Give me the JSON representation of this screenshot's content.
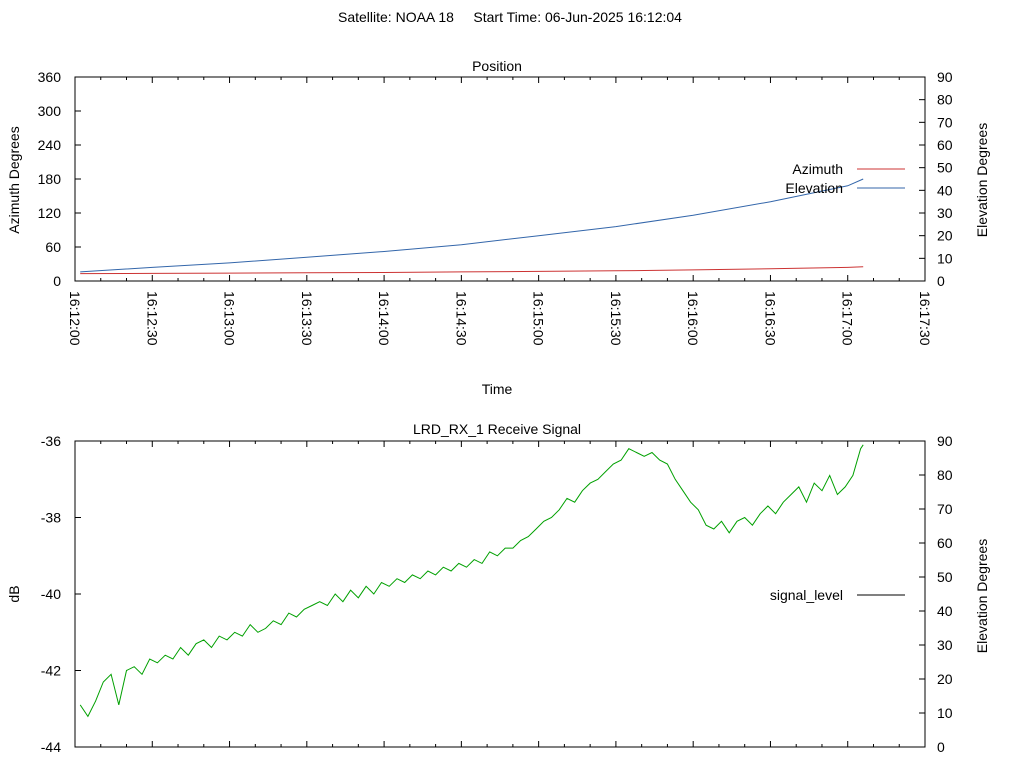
{
  "figure": {
    "title": "Satellite: NOAA 18     Start Time: 06-Jun-2025 16:12:04"
  },
  "chart_data": [
    {
      "type": "line",
      "title": "Position",
      "xlabel": "Time",
      "ylabel": "Azimuth Degrees",
      "y2label": "Elevation Degrees",
      "x_tick_labels": [
        "16:12:00",
        "16:12:30",
        "16:13:00",
        "16:13:30",
        "16:14:00",
        "16:14:30",
        "16:15:00",
        "16:15:30",
        "16:16:00",
        "16:16:30",
        "16:17:00",
        "16:17:30"
      ],
      "xlim_seconds": [
        0,
        330
      ],
      "ylim": [
        0,
        360
      ],
      "y_ticks": [
        0,
        60,
        120,
        180,
        240,
        300,
        360
      ],
      "y2lim": [
        0,
        90
      ],
      "y2_ticks": [
        0,
        10,
        20,
        30,
        40,
        50,
        60,
        70,
        80,
        90
      ],
      "legend_position": "top-right",
      "series": [
        {
          "name": "Azimuth",
          "color": "#cc3333",
          "axis": "y",
          "x_seconds": [
            2,
            30,
            60,
            90,
            120,
            150,
            180,
            210,
            240,
            270,
            300,
            306
          ],
          "values": [
            13,
            13.5,
            14,
            14.5,
            15,
            16,
            17,
            18,
            19.5,
            21.5,
            24,
            25
          ]
        },
        {
          "name": "Elevation",
          "color": "#3366aa",
          "axis": "y2",
          "x_seconds": [
            2,
            30,
            60,
            90,
            120,
            150,
            180,
            210,
            240,
            270,
            300,
            306
          ],
          "values": [
            4,
            6,
            8,
            10.5,
            13,
            16,
            20,
            24,
            29,
            35,
            42,
            45
          ]
        }
      ]
    },
    {
      "type": "line",
      "title": "LRD_RX_1 Receive Signal",
      "ylabel": "dB",
      "y2label": "Elevation Degrees",
      "xlim_seconds": [
        0,
        330
      ],
      "ylim": [
        -44,
        -36
      ],
      "y_ticks": [
        -44,
        -42,
        -40,
        -38,
        -36
      ],
      "y2lim": [
        0,
        90
      ],
      "y2_ticks": [
        0,
        10,
        20,
        30,
        40,
        50,
        60,
        70,
        80,
        90
      ],
      "legend_position": "right",
      "series": [
        {
          "name": "signal_level",
          "color": "#00a000",
          "x_seconds": [
            2,
            5,
            8,
            11,
            14,
            17,
            20,
            23,
            26,
            29,
            32,
            35,
            38,
            41,
            44,
            47,
            50,
            53,
            56,
            59,
            62,
            65,
            68,
            71,
            74,
            77,
            80,
            83,
            86,
            89,
            92,
            95,
            98,
            101,
            104,
            107,
            110,
            113,
            116,
            119,
            122,
            125,
            128,
            131,
            134,
            137,
            140,
            143,
            146,
            149,
            152,
            155,
            158,
            161,
            164,
            167,
            170,
            173,
            176,
            179,
            182,
            185,
            188,
            191,
            194,
            197,
            200,
            203,
            206,
            209,
            212,
            215,
            218,
            221,
            224,
            227,
            230,
            233,
            236,
            239,
            242,
            245,
            248,
            251,
            254,
            257,
            260,
            263,
            266,
            269,
            272,
            275,
            278,
            281,
            284,
            287,
            290,
            293,
            296,
            299,
            302,
            305,
            306
          ],
          "values": [
            -42.9,
            -43.2,
            -42.8,
            -42.3,
            -42.1,
            -42.9,
            -42.0,
            -41.9,
            -42.1,
            -41.7,
            -41.8,
            -41.6,
            -41.7,
            -41.4,
            -41.6,
            -41.3,
            -41.2,
            -41.4,
            -41.1,
            -41.2,
            -41.0,
            -41.1,
            -40.8,
            -41.0,
            -40.9,
            -40.7,
            -40.8,
            -40.5,
            -40.6,
            -40.4,
            -40.3,
            -40.2,
            -40.3,
            -40.0,
            -40.2,
            -39.9,
            -40.1,
            -39.8,
            -40.0,
            -39.7,
            -39.8,
            -39.6,
            -39.7,
            -39.5,
            -39.6,
            -39.4,
            -39.5,
            -39.3,
            -39.4,
            -39.2,
            -39.3,
            -39.1,
            -39.2,
            -38.9,
            -39.0,
            -38.8,
            -38.8,
            -38.6,
            -38.5,
            -38.3,
            -38.1,
            -38.0,
            -37.8,
            -37.5,
            -37.6,
            -37.3,
            -37.1,
            -37.0,
            -36.8,
            -36.6,
            -36.5,
            -36.2,
            -36.3,
            -36.4,
            -36.3,
            -36.5,
            -36.6,
            -37.0,
            -37.3,
            -37.6,
            -37.8,
            -38.2,
            -38.3,
            -38.1,
            -38.4,
            -38.1,
            -38.0,
            -38.2,
            -37.9,
            -37.7,
            -37.9,
            -37.6,
            -37.4,
            -37.2,
            -37.6,
            -37.1,
            -37.3,
            -36.9,
            -37.4,
            -37.2,
            -36.9,
            -36.2,
            -36.1
          ]
        }
      ]
    }
  ]
}
